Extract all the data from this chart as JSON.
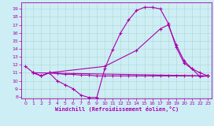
{
  "xlabel": "Windchill (Refroidissement éolien,°C)",
  "bg_color": "#cdeef5",
  "line_color": "#aa00aa",
  "grid_color": "#b0d8cc",
  "xlim": [
    -0.5,
    23.5
  ],
  "ylim": [
    7.8,
    19.8
  ],
  "yticks": [
    8,
    9,
    10,
    11,
    12,
    13,
    14,
    15,
    16,
    17,
    18,
    19
  ],
  "xticks": [
    0,
    1,
    2,
    3,
    4,
    5,
    6,
    7,
    8,
    9,
    10,
    11,
    12,
    13,
    14,
    15,
    16,
    17,
    18,
    19,
    20,
    21,
    22,
    23
  ],
  "curve1_x": [
    0,
    1,
    2,
    3,
    4,
    5,
    6,
    7,
    8,
    9,
    10,
    11,
    12,
    13,
    14,
    15,
    16,
    17,
    18,
    19,
    20,
    21,
    22,
    23
  ],
  "curve1_y": [
    11.8,
    11.0,
    10.6,
    11.0,
    10.0,
    9.5,
    9.0,
    8.2,
    7.9,
    7.9,
    11.5,
    13.9,
    16.0,
    17.6,
    18.8,
    19.2,
    19.2,
    19.0,
    17.2,
    14.2,
    12.2,
    11.5,
    10.5,
    10.6
  ],
  "curve2_x": [
    1,
    2,
    3,
    10,
    14,
    17,
    18,
    19,
    20,
    21,
    22,
    23
  ],
  "curve2_y": [
    11.0,
    10.6,
    11.0,
    11.8,
    13.8,
    16.5,
    17.0,
    14.5,
    12.5,
    11.5,
    11.0,
    10.6
  ],
  "curve3_x": [
    1,
    23
  ],
  "curve3_y": [
    11.0,
    10.6
  ],
  "curve4_x": [
    1,
    2,
    3,
    4,
    5,
    6,
    7,
    8,
    9,
    10,
    11,
    12,
    13,
    14,
    15,
    16,
    17,
    18,
    19,
    20,
    21,
    22,
    23
  ],
  "curve4_y": [
    11.0,
    10.6,
    11.0,
    10.9,
    10.8,
    10.8,
    10.7,
    10.7,
    10.6,
    10.6,
    10.6,
    10.6,
    10.6,
    10.6,
    10.6,
    10.6,
    10.6,
    10.6,
    10.6,
    10.6,
    10.6,
    10.6,
    10.6
  ]
}
